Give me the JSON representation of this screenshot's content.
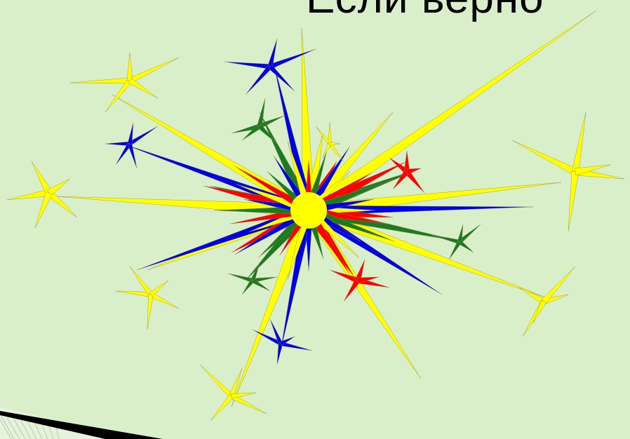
{
  "slide": {
    "title": "Если верно"
  },
  "illustration": {
    "name": "fireworks-burst",
    "colors": {
      "background": "#d8efc9",
      "yellow": "#ffff00",
      "red": "#ff0000",
      "green": "#1e7a1e",
      "blue": "#0000e0"
    }
  }
}
